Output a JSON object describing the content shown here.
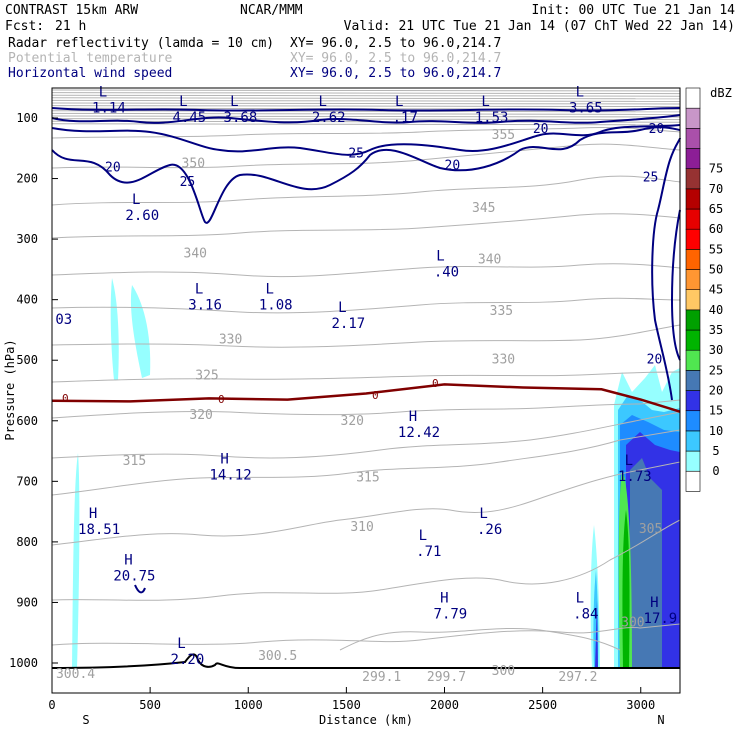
{
  "header": {
    "model": "CONTRAST 15km ARW",
    "center": "NCAR/MMM",
    "init": "Init: 00 UTC Tue 21 Jan 14",
    "fcst_label": "Fcst:",
    "fcst_value": "21 h",
    "valid": "Valid: 21 UTC Tue 21 Jan 14 (07 ChT Wed 22 Jan 14)",
    "fields": [
      {
        "name": "Radar reflectivity (lamda = 10 cm)",
        "xy": "XY=  96.0,  2.5 to  96.0,214.7",
        "color": "#000000"
      },
      {
        "name": "Potential temperature",
        "xy": "XY=  96.0,  2.5 to  96.0,214.7",
        "color": "#b4b4b4"
      },
      {
        "name": "Horizontal wind speed",
        "xy": "XY=  96.0,  2.5 to  96.0,214.7",
        "color": "#000080"
      }
    ]
  },
  "chart_data": {
    "type": "cross-section contour",
    "xlabel": "Distance (km)",
    "ylabel": "Pressure (hPa)",
    "xlim": [
      0,
      3200
    ],
    "ylim": [
      1050,
      70
    ],
    "x_ticks": [
      0,
      500,
      1000,
      1500,
      2000,
      2500,
      3000
    ],
    "y_ticks": [
      100,
      200,
      300,
      400,
      500,
      600,
      700,
      800,
      900,
      1000
    ],
    "x_end_labels": {
      "left": "S",
      "right": "N"
    },
    "colorbar": {
      "unit": "dBZ",
      "levels": [
        0,
        5,
        10,
        15,
        20,
        25,
        30,
        35,
        40,
        45,
        50,
        55,
        60,
        65,
        70,
        75
      ],
      "colors": [
        "#ffffff",
        "#96ffff",
        "#3cc8ff",
        "#1e8cff",
        "#3232e6",
        "#4678b4",
        "#50e650",
        "#00b400",
        "#00a000",
        "#ffc864",
        "#ff9632",
        "#ff6400",
        "#ff0000",
        "#e60000",
        "#b40000",
        "#963232",
        "#8c1e96",
        "#aa50aa",
        "#c896c8",
        "#ffffff"
      ]
    },
    "theta_isentropes_K": [
      300,
      305,
      310,
      315,
      320,
      325,
      330,
      335,
      340,
      345,
      350,
      355
    ],
    "wind_isotachs": [
      20,
      25
    ],
    "freezing_level": {
      "label": "0",
      "x_km": [
        0,
        400,
        800,
        1200,
        1600,
        2000,
        2400,
        2800,
        3000,
        3200
      ],
      "p_hPa": [
        567,
        568,
        563,
        565,
        555,
        540,
        545,
        548,
        565,
        585
      ]
    },
    "pressure_markers": [
      {
        "type": "L",
        "value": "1.14",
        "x": 290,
        "p": 84
      },
      {
        "type": "L",
        "value": "4.45",
        "x": 700,
        "p": 100
      },
      {
        "type": "L",
        "value": "3.68",
        "x": 960,
        "p": 100
      },
      {
        "type": "L",
        "value": "2.62",
        "x": 1410,
        "p": 100
      },
      {
        "type": "L",
        "value": ".17",
        "x": 1800,
        "p": 100
      },
      {
        "type": "L",
        "value": "1.53",
        "x": 2240,
        "p": 100
      },
      {
        "type": "L",
        "value": "3.65",
        "x": 2720,
        "p": 84
      },
      {
        "type": "L",
        "value": "2.60",
        "x": 460,
        "p": 262
      },
      {
        "type": "L",
        "value": ".40",
        "x": 2010,
        "p": 355
      },
      {
        "type": "L",
        "value": "3.16",
        "x": 780,
        "p": 410
      },
      {
        "type": "L",
        "value": "1.08",
        "x": 1140,
        "p": 410
      },
      {
        "type": "L",
        "value": "2.17",
        "x": 1510,
        "p": 440
      },
      {
        "type": "H",
        "value": "12.42",
        "x": 1870,
        "p": 620
      },
      {
        "type": "H",
        "value": "14.12",
        "x": 910,
        "p": 690
      },
      {
        "type": "L",
        "value": "1.73",
        "x": 2970,
        "p": 693
      },
      {
        "type": "H",
        "value": "18.51",
        "x": 240,
        "p": 780
      },
      {
        "type": "L",
        "value": ".26",
        "x": 2230,
        "p": 780
      },
      {
        "type": "L",
        "value": ".71",
        "x": 1920,
        "p": 817
      },
      {
        "type": "H",
        "value": "20.75",
        "x": 420,
        "p": 857
      },
      {
        "type": "H",
        "value": "7.79",
        "x": 2030,
        "p": 920
      },
      {
        "type": "L",
        "value": ".84",
        "x": 2720,
        "p": 920
      },
      {
        "type": "H",
        "value": "17.9",
        "x": 3100,
        "p": 927
      },
      {
        "type": "L",
        "value": "2.20",
        "x": 690,
        "p": 995
      }
    ],
    "cut_labels": [
      {
        "text": "03",
        "x": 60,
        "p": 440
      }
    ],
    "theta_labels": [
      {
        "text": "355",
        "x": 2300,
        "p": 135
      },
      {
        "text": "350",
        "x": 720,
        "p": 182
      },
      {
        "text": "345",
        "x": 2200,
        "p": 255
      },
      {
        "text": "340",
        "x": 730,
        "p": 330
      },
      {
        "text": "340",
        "x": 2230,
        "p": 340
      },
      {
        "text": "335",
        "x": 2290,
        "p": 425
      },
      {
        "text": "330",
        "x": 910,
        "p": 472
      },
      {
        "text": "330",
        "x": 2300,
        "p": 505
      },
      {
        "text": "325",
        "x": 790,
        "p": 532
      },
      {
        "text": "320",
        "x": 760,
        "p": 597
      },
      {
        "text": "320",
        "x": 1530,
        "p": 607
      },
      {
        "text": "315",
        "x": 420,
        "p": 673
      },
      {
        "text": "315",
        "x": 1610,
        "p": 700
      },
      {
        "text": "310",
        "x": 1580,
        "p": 782
      },
      {
        "text": "305",
        "x": 3050,
        "p": 785
      },
      {
        "text": "300.5",
        "x": 1150,
        "p": 995
      },
      {
        "text": "300.4",
        "x": 120,
        "p": 1025
      },
      {
        "text": "299.1",
        "x": 1680,
        "p": 1030
      },
      {
        "text": "299.7",
        "x": 2010,
        "p": 1030
      },
      {
        "text": "297.2",
        "x": 2680,
        "p": 1030
      },
      {
        "text": "300",
        "x": 2300,
        "p": 1020
      },
      {
        "text": "300",
        "x": 2960,
        "p": 940
      }
    ],
    "wind_labels": [
      {
        "text": "20",
        "x": 310,
        "p": 188
      },
      {
        "text": "25",
        "x": 690,
        "p": 212
      },
      {
        "text": "25",
        "x": 1550,
        "p": 165
      },
      {
        "text": "20",
        "x": 2040,
        "p": 185
      },
      {
        "text": "20",
        "x": 2490,
        "p": 125
      },
      {
        "text": "20",
        "x": 3080,
        "p": 125
      },
      {
        "text": "25",
        "x": 3050,
        "p": 205
      },
      {
        "text": "20",
        "x": 3070,
        "p": 505
      }
    ]
  }
}
